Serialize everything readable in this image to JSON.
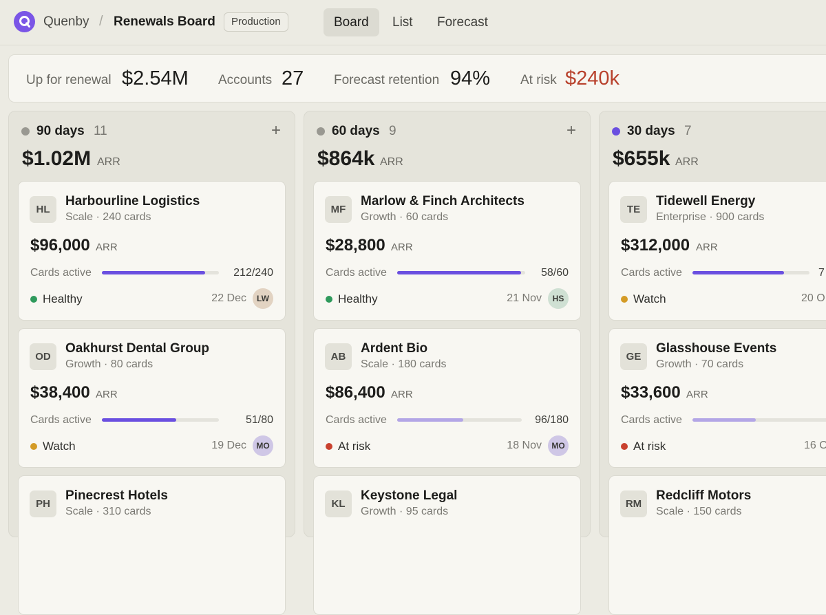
{
  "header": {
    "org": "Quenby",
    "separator": "/",
    "page_title": "Renewals Board",
    "environment": "Production",
    "tabs": [
      {
        "label": "Board",
        "active": true
      },
      {
        "label": "List",
        "active": false
      },
      {
        "label": "Forecast",
        "active": false
      }
    ],
    "brand_color": "#7a55e6"
  },
  "stats": {
    "up_for_renewal": {
      "label": "Up for renewal",
      "value": "$2.54M"
    },
    "accounts": {
      "label": "Accounts",
      "value": "27"
    },
    "forecast_retention": {
      "label": "Forecast retention",
      "value": "94%"
    },
    "at_risk": {
      "label": "At risk",
      "value": "$240k"
    }
  },
  "columns": [
    {
      "title": "90 days",
      "count": "11",
      "total": "$1.02M",
      "total_unit": "ARR",
      "dot_color": "#999891",
      "cards": [
        {
          "initials": "HL",
          "name": "Harbourline Logistics",
          "sub": "Scale · 240 cards",
          "amount": "$96,000",
          "amount_unit": "ARR",
          "active_label": "Cards active",
          "ratio": "212/240",
          "active_fraction": 0.883,
          "bar_color": "#6a4fe0",
          "status": "Healthy",
          "status_color": "#2f9a5c",
          "date": "22 Dec",
          "owner": "LW",
          "owner_bg": "#e2d3c2"
        },
        {
          "initials": "OD",
          "name": "Oakhurst Dental Group",
          "sub": "Growth · 80 cards",
          "amount": "$38,400",
          "amount_unit": "ARR",
          "active_label": "Cards active",
          "ratio": "51/80",
          "active_fraction": 0.6375,
          "bar_color": "#6a4fe0",
          "status": "Watch",
          "status_color": "#d49b26",
          "date": "19 Dec",
          "owner": "MO",
          "owner_bg": "#cfc7e6"
        },
        {
          "initials": "PH",
          "name": "Pinecrest Hotels",
          "sub": "Scale · 310 cards"
        }
      ]
    },
    {
      "title": "60 days",
      "count": "9",
      "total": "$864k",
      "total_unit": "ARR",
      "dot_color": "#999891",
      "cards": [
        {
          "initials": "MF",
          "name": "Marlow & Finch Architects",
          "sub": "Growth · 60 cards",
          "amount": "$28,800",
          "amount_unit": "ARR",
          "active_label": "Cards active",
          "ratio": "58/60",
          "active_fraction": 0.967,
          "bar_color": "#6a4fe0",
          "status": "Healthy",
          "status_color": "#2f9a5c",
          "date": "21 Nov",
          "owner": "HS",
          "owner_bg": "#cfe0d3"
        },
        {
          "initials": "AB",
          "name": "Ardent Bio",
          "sub": "Scale · 180 cards",
          "amount": "$86,400",
          "amount_unit": "ARR",
          "active_label": "Cards active",
          "ratio": "96/180",
          "active_fraction": 0.533,
          "bar_color": "#b3a6e6",
          "status": "At risk",
          "status_color": "#c9412e",
          "date": "18 Nov",
          "owner": "MO",
          "owner_bg": "#cfc7e6"
        },
        {
          "initials": "KL",
          "name": "Keystone Legal",
          "sub": "Growth · 95 cards"
        }
      ]
    },
    {
      "title": "30 days",
      "count": "7",
      "total": "$655k",
      "total_unit": "ARR",
      "dot_color": "#6a4fe0",
      "cards": [
        {
          "initials": "TE",
          "name": "Tidewell Energy",
          "sub": "Enterprise · 900 cards",
          "amount": "$312,000",
          "amount_unit": "ARR",
          "active_label": "Cards active",
          "ratio": "7",
          "active_fraction": 0.78,
          "bar_color": "#6a4fe0",
          "status": "Watch",
          "status_color": "#d49b26",
          "date": "20 O"
        },
        {
          "initials": "GE",
          "name": "Glasshouse Events",
          "sub": "Growth · 70 cards",
          "amount": "$33,600",
          "amount_unit": "ARR",
          "active_label": "Cards active",
          "ratio": "",
          "active_fraction": 0.46,
          "bar_color": "#b3a6e6",
          "status": "At risk",
          "status_color": "#c9412e",
          "date": "16 O"
        },
        {
          "initials": "RM",
          "name": "Redcliff Motors",
          "sub": "Scale · 150 cards"
        }
      ]
    }
  ]
}
